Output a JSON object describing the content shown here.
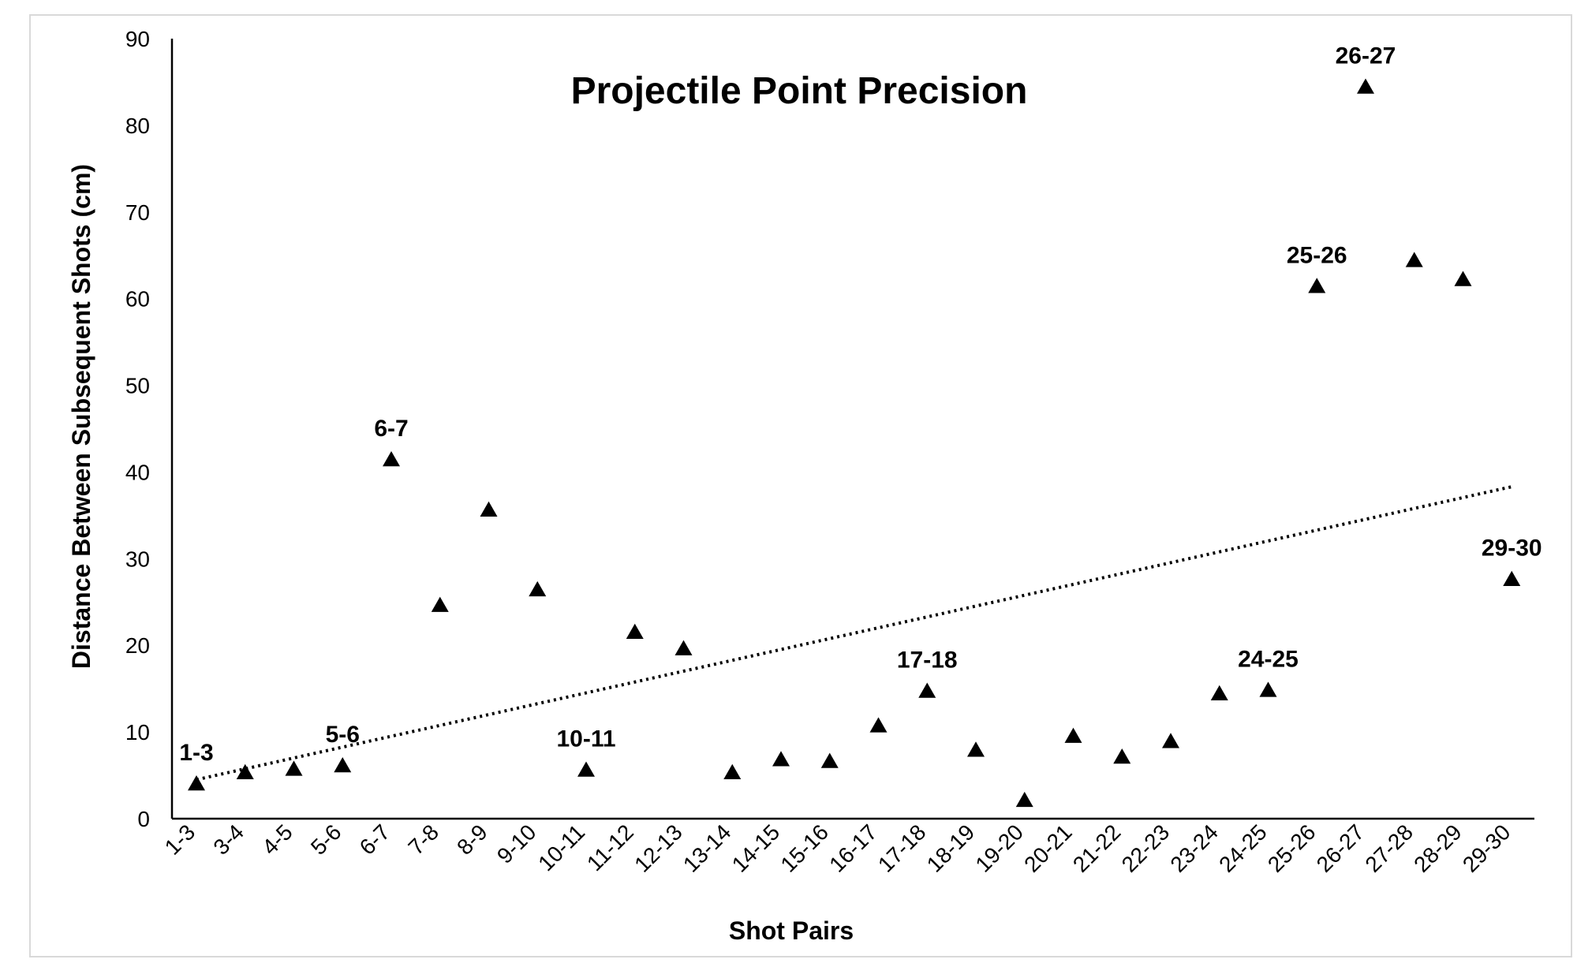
{
  "chart_data": {
    "type": "scatter",
    "title": "Projectile Point Precision",
    "xlabel": "Shot Pairs",
    "ylabel": "Distance Between Subsequent Shots (cm)",
    "ylim": [
      0,
      90
    ],
    "yticks": [
      0,
      10,
      20,
      30,
      40,
      50,
      60,
      70,
      80,
      90
    ],
    "categories": [
      "1-3",
      "3-4",
      "4-5",
      "5-6",
      "6-7",
      "7-8",
      "8-9",
      "9-10",
      "10-11",
      "11-12",
      "12-13",
      "13-14",
      "14-15",
      "15-16",
      "16-17",
      "17-18",
      "18-19",
      "19-20",
      "20-21",
      "21-22",
      "22-23",
      "23-24",
      "24-25",
      "25-26",
      "26-27",
      "27-28",
      "28-29",
      "29-30"
    ],
    "series": [
      {
        "values": [
          4.0,
          5.3,
          5.7,
          6.1,
          41.4,
          24.6,
          35.6,
          26.4,
          5.6,
          21.5,
          19.6,
          5.3,
          6.8,
          6.6,
          10.7,
          14.7,
          7.9,
          2.1,
          9.5,
          7.1,
          8.9,
          14.4,
          14.8,
          61.4,
          84.4,
          64.4,
          62.2,
          27.6
        ]
      }
    ],
    "point_labels": [
      {
        "category": "1-3",
        "text": "1-3"
      },
      {
        "category": "5-6",
        "text": "5-6"
      },
      {
        "category": "6-7",
        "text": "6-7"
      },
      {
        "category": "10-11",
        "text": "10-11"
      },
      {
        "category": "17-18",
        "text": "17-18"
      },
      {
        "category": "24-25",
        "text": "24-25"
      },
      {
        "category": "25-26",
        "text": "25-26"
      },
      {
        "category": "26-27",
        "text": "26-27"
      },
      {
        "category": "29-30",
        "text": "29-30"
      }
    ],
    "marker": "triangle",
    "trendline": {
      "type": "linear",
      "style": "dotted",
      "start": 4.5,
      "end": 38.3
    },
    "grid": false,
    "legend": "none",
    "colors": {
      "marker": "#000000",
      "axis": "#000000",
      "trendline": "#000000"
    }
  }
}
